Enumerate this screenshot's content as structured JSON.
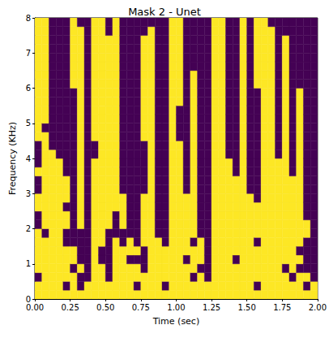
{
  "chart_data": {
    "type": "heatmap",
    "title": "Mask 2 - Unet",
    "xlabel": "Time (sec)",
    "ylabel": "Frequency (KHz)",
    "xlim": [
      0,
      2
    ],
    "ylim": [
      0,
      8
    ],
    "xticks": [
      {
        "value": 0,
        "label": "0.00"
      },
      {
        "value": 0.25,
        "label": "0.25"
      },
      {
        "value": 0.5,
        "label": "0.50"
      },
      {
        "value": 0.75,
        "label": "0.75"
      },
      {
        "value": 1,
        "label": "1.00"
      },
      {
        "value": 1.25,
        "label": "1.25"
      },
      {
        "value": 1.5,
        "label": "1.50"
      },
      {
        "value": 1.75,
        "label": "1.75"
      },
      {
        "value": 2,
        "label": "2.00"
      }
    ],
    "yticks": [
      0,
      1,
      2,
      3,
      4,
      5,
      6,
      7,
      8
    ],
    "colors": [
      "#440154",
      "#fde725"
    ],
    "cells": [
      [
        1,
        1,
        0,
        1,
        1,
        1,
        1,
        1,
        0,
        0,
        1,
        1,
        0,
        0,
        1,
        0,
        0,
        0,
        1,
        1,
        1,
        1,
        1,
        1,
        1,
        1,
        1,
        1,
        1,
        1,
        1,
        1
      ],
      [
        1,
        1,
        1,
        1,
        1,
        1,
        1,
        0,
        1,
        1,
        1,
        1,
        1,
        1,
        1,
        1,
        1,
        1,
        1,
        0,
        1,
        1,
        1,
        1,
        1,
        1,
        1,
        1,
        1,
        1,
        1,
        1
      ],
      [
        1,
        1,
        1,
        1,
        1,
        1,
        1,
        1,
        1,
        1,
        1,
        1,
        1,
        1,
        1,
        1,
        1,
        0,
        0,
        0,
        0,
        0,
        0,
        0,
        0,
        0,
        0,
        0,
        0,
        0,
        0,
        0
      ],
      [
        1,
        1,
        1,
        1,
        1,
        1,
        1,
        1,
        1,
        1,
        1,
        1,
        1,
        1,
        1,
        1,
        0,
        0,
        0,
        0,
        0,
        0,
        0,
        0,
        0,
        0,
        0,
        0,
        0,
        0,
        0,
        0
      ],
      [
        1,
        0,
        1,
        1,
        1,
        1,
        0,
        0,
        1,
        1,
        0,
        1,
        1,
        1,
        0,
        0,
        0,
        0,
        0,
        0,
        0,
        0,
        0,
        0,
        0,
        0,
        0,
        0,
        0,
        0,
        0,
        0
      ],
      [
        1,
        1,
        1,
        0,
        1,
        1,
        0,
        0,
        0,
        0,
        0,
        0,
        0,
        0,
        0,
        0,
        0,
        0,
        0,
        0,
        0,
        0,
        0,
        0,
        1,
        1,
        1,
        1,
        1,
        1,
        1,
        1
      ],
      [
        1,
        0,
        0,
        1,
        0,
        0,
        0,
        0,
        1,
        1,
        1,
        1,
        1,
        1,
        1,
        1,
        1,
        1,
        1,
        1,
        1,
        1,
        1,
        1,
        1,
        1,
        1,
        1,
        1,
        1,
        1,
        0
      ],
      [
        1,
        1,
        0,
        0,
        0,
        0,
        0,
        0,
        0,
        0,
        0,
        0,
        0,
        0,
        0,
        0,
        0,
        0,
        0,
        0,
        0,
        0,
        0,
        0,
        0,
        0,
        0,
        0,
        0,
        0,
        0,
        0
      ],
      [
        1,
        1,
        1,
        1,
        1,
        1,
        1,
        1,
        1,
        1,
        1,
        1,
        1,
        1,
        1,
        1,
        0,
        0,
        1,
        1,
        1,
        1,
        1,
        1,
        1,
        1,
        1,
        1,
        1,
        1,
        1,
        1
      ],
      [
        1,
        1,
        1,
        1,
        0,
        0,
        1,
        1,
        1,
        1,
        1,
        1,
        1,
        1,
        1,
        1,
        1,
        1,
        1,
        1,
        1,
        1,
        1,
        1,
        1,
        1,
        1,
        1,
        1,
        1,
        1,
        1
      ],
      [
        1,
        1,
        0,
        0,
        0,
        0,
        0,
        0,
        1,
        1,
        1,
        1,
        1,
        1,
        1,
        1,
        1,
        1,
        1,
        1,
        1,
        1,
        1,
        1,
        1,
        1,
        1,
        1,
        1,
        1,
        0,
        0
      ],
      [
        1,
        1,
        1,
        1,
        1,
        1,
        1,
        0,
        0,
        0,
        1,
        1,
        1,
        1,
        1,
        1,
        1,
        1,
        1,
        1,
        1,
        1,
        1,
        1,
        1,
        1,
        1,
        1,
        1,
        1,
        1,
        1
      ],
      [
        1,
        1,
        1,
        1,
        1,
        1,
        0,
        0,
        1,
        1,
        1,
        1,
        0,
        0,
        0,
        0,
        0,
        0,
        0,
        0,
        0,
        0,
        0,
        0,
        0,
        0,
        0,
        0,
        0,
        0,
        0,
        0
      ],
      [
        1,
        1,
        1,
        1,
        0,
        1,
        1,
        0,
        0,
        0,
        0,
        0,
        0,
        0,
        0,
        0,
        0,
        0,
        0,
        0,
        0,
        0,
        0,
        0,
        0,
        0,
        0,
        0,
        0,
        0,
        0,
        0
      ],
      [
        1,
        0,
        1,
        1,
        0,
        1,
        0,
        0,
        0,
        0,
        0,
        0,
        0,
        0,
        0,
        0,
        0,
        0,
        0,
        0,
        0,
        0,
        0,
        0,
        0,
        0,
        0,
        0,
        0,
        0,
        0,
        0
      ],
      [
        1,
        1,
        1,
        0,
        0,
        0,
        1,
        1,
        1,
        1,
        1,
        1,
        0,
        0,
        0,
        0,
        0,
        0,
        1,
        1,
        1,
        1,
        1,
        1,
        1,
        1,
        1,
        1,
        1,
        1,
        0,
        0
      ],
      [
        1,
        1,
        1,
        1,
        1,
        1,
        1,
        1,
        1,
        1,
        1,
        1,
        1,
        1,
        1,
        1,
        1,
        1,
        1,
        1,
        1,
        1,
        1,
        1,
        1,
        1,
        1,
        1,
        1,
        1,
        1,
        0
      ],
      [
        1,
        1,
        1,
        1,
        1,
        1,
        1,
        0,
        0,
        0,
        0,
        0,
        0,
        0,
        0,
        0,
        0,
        0,
        0,
        0,
        0,
        0,
        0,
        0,
        0,
        0,
        0,
        0,
        0,
        0,
        0,
        0
      ],
      [
        1,
        0,
        1,
        1,
        1,
        1,
        0,
        0,
        0,
        0,
        0,
        0,
        0,
        0,
        0,
        0,
        0,
        0,
        0,
        0,
        0,
        0,
        0,
        0,
        0,
        0,
        0,
        0,
        0,
        0,
        0,
        0
      ],
      [
        1,
        1,
        1,
        1,
        1,
        1,
        1,
        1,
        1,
        1,
        1,
        1,
        1,
        1,
        1,
        1,
        1,
        1,
        1,
        1,
        1,
        1,
        1,
        1,
        1,
        1,
        1,
        1,
        1,
        1,
        1,
        1
      ],
      [
        1,
        1,
        1,
        1,
        1,
        1,
        1,
        1,
        1,
        1,
        1,
        1,
        1,
        1,
        1,
        1,
        1,
        1,
        0,
        0,
        0,
        0,
        1,
        1,
        1,
        1,
        1,
        1,
        1,
        1,
        1,
        1
      ],
      [
        1,
        1,
        1,
        1,
        0,
        1,
        1,
        1,
        1,
        1,
        1,
        1,
        0,
        0,
        0,
        0,
        0,
        0,
        0,
        0,
        0,
        0,
        0,
        0,
        0,
        0,
        0,
        0,
        0,
        0,
        0,
        0
      ],
      [
        1,
        1,
        0,
        1,
        1,
        1,
        0,
        1,
        1,
        1,
        1,
        1,
        1,
        1,
        1,
        1,
        1,
        1,
        1,
        1,
        1,
        1,
        1,
        1,
        1,
        1,
        0,
        0,
        0,
        0,
        0,
        0
      ],
      [
        1,
        1,
        1,
        0,
        1,
        1,
        1,
        0,
        0,
        0,
        0,
        0,
        0,
        0,
        0,
        0,
        0,
        0,
        0,
        0,
        0,
        0,
        0,
        0,
        0,
        0,
        0,
        0,
        0,
        0,
        0,
        0
      ],
      [
        1,
        1,
        0,
        0,
        0,
        0,
        0,
        0,
        0,
        0,
        0,
        0,
        0,
        0,
        0,
        0,
        0,
        0,
        0,
        0,
        0,
        0,
        0,
        0,
        0,
        0,
        0,
        0,
        0,
        0,
        0,
        0
      ],
      [
        1,
        1,
        1,
        1,
        1,
        1,
        1,
        1,
        1,
        1,
        1,
        1,
        1,
        1,
        1,
        1,
        1,
        1,
        1,
        1,
        1,
        1,
        1,
        1,
        1,
        1,
        1,
        1,
        1,
        1,
        1,
        1
      ],
      [
        1,
        1,
        1,
        1,
        1,
        1,
        1,
        1,
        1,
        1,
        1,
        1,
        1,
        1,
        1,
        1,
        1,
        1,
        1,
        1,
        1,
        1,
        1,
        1,
        1,
        1,
        1,
        1,
        1,
        1,
        1,
        1
      ],
      [
        1,
        1,
        1,
        1,
        1,
        1,
        1,
        1,
        1,
        1,
        1,
        1,
        1,
        1,
        1,
        1,
        0,
        0,
        0,
        0,
        0,
        0,
        0,
        0,
        0,
        0,
        0,
        0,
        0,
        0,
        0,
        0
      ],
      [
        1,
        1,
        1,
        1,
        0,
        1,
        1,
        1,
        1,
        1,
        1,
        1,
        1,
        1,
        0,
        0,
        0,
        0,
        0,
        0,
        0,
        0,
        0,
        0,
        0,
        0,
        0,
        0,
        0,
        0,
        0,
        0
      ],
      [
        1,
        1,
        1,
        1,
        1,
        1,
        1,
        1,
        1,
        1,
        1,
        1,
        1,
        1,
        1,
        1,
        1,
        1,
        1,
        1,
        1,
        1,
        1,
        1,
        1,
        1,
        1,
        1,
        1,
        1,
        1,
        1
      ],
      [
        1,
        1,
        1,
        1,
        1,
        1,
        1,
        1,
        1,
        1,
        1,
        1,
        0,
        0,
        0,
        0,
        0,
        0,
        0,
        0,
        0,
        0,
        0,
        0,
        0,
        0,
        0,
        0,
        0,
        0,
        0,
        0
      ],
      [
        1,
        0,
        1,
        1,
        1,
        1,
        0,
        1,
        1,
        1,
        1,
        0,
        0,
        0,
        0,
        0,
        0,
        0,
        0,
        0,
        0,
        0,
        0,
        0,
        1,
        1,
        1,
        1,
        1,
        1,
        1,
        1
      ],
      [
        1,
        1,
        1,
        1,
        1,
        1,
        1,
        1,
        1,
        1,
        1,
        1,
        1,
        1,
        1,
        1,
        1,
        1,
        1,
        1,
        1,
        1,
        1,
        1,
        1,
        1,
        1,
        1,
        1,
        1,
        1,
        1
      ],
      [
        1,
        1,
        1,
        1,
        1,
        1,
        1,
        1,
        1,
        1,
        1,
        1,
        1,
        1,
        1,
        1,
        1,
        1,
        1,
        1,
        1,
        1,
        1,
        1,
        1,
        1,
        1,
        1,
        1,
        1,
        1,
        0
      ],
      [
        1,
        1,
        1,
        1,
        1,
        1,
        1,
        1,
        1,
        1,
        1,
        1,
        1,
        1,
        1,
        1,
        0,
        0,
        0,
        0,
        0,
        0,
        0,
        0,
        0,
        0,
        0,
        0,
        0,
        0,
        0,
        0
      ],
      [
        1,
        1,
        1,
        0,
        1,
        1,
        1,
        1,
        1,
        1,
        1,
        1,
        1,
        1,
        1,
        1,
        1,
        1,
        1,
        1,
        1,
        1,
        1,
        1,
        1,
        1,
        1,
        1,
        1,
        1,
        0,
        0
      ],
      [
        1,
        1,
        0,
        1,
        1,
        1,
        1,
        1,
        1,
        1,
        1,
        1,
        1,
        1,
        0,
        0,
        0,
        0,
        0,
        0,
        0,
        0,
        0,
        0,
        0,
        0,
        0,
        0,
        0,
        0,
        0,
        0
      ],
      [
        1,
        1,
        1,
        0,
        1,
        0,
        1,
        1,
        1,
        1,
        1,
        1,
        1,
        1,
        1,
        1,
        1,
        1,
        1,
        1,
        1,
        1,
        1,
        1,
        0,
        0,
        0,
        0,
        0,
        0,
        0,
        0
      ],
      [
        1,
        0,
        1,
        0,
        0,
        0,
        0,
        1,
        1,
        0,
        0,
        0,
        0,
        0,
        0,
        0,
        0,
        0,
        0,
        0,
        0,
        0,
        0,
        0,
        0,
        0,
        0,
        0,
        0,
        0,
        0,
        0
      ],
      [
        1,
        1,
        0,
        0,
        0,
        0,
        0,
        0,
        0,
        0,
        0,
        0,
        0,
        0,
        0,
        0,
        0,
        0,
        0,
        0,
        0,
        0,
        0,
        0,
        0,
        0,
        0,
        0,
        0,
        0,
        0,
        0
      ]
    ]
  }
}
